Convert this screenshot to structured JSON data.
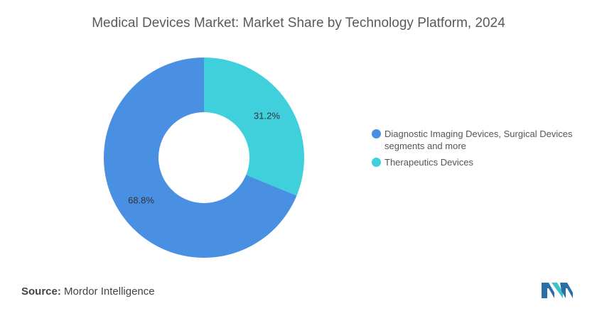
{
  "chart_data": {
    "type": "pie",
    "title": "Medical Devices Market: Market Share by Technology Platform, 2024",
    "slices": [
      {
        "label": "Therapeutics Devices",
        "value": 31.2,
        "display": "31.2%",
        "color": "#40d0dc"
      },
      {
        "label": "Diagnostic Imaging Devices, Surgical Devices segments and more",
        "value": 68.8,
        "display": "68.8%",
        "color": "#4a90e2"
      }
    ],
    "legend": [
      {
        "label": "Diagnostic Imaging Devices, Surgical Devices segments and more",
        "color": "#4a90e2"
      },
      {
        "label": "Therapeutics Devices",
        "color": "#40d0dc"
      }
    ],
    "legend_position": "right",
    "donut": true
  },
  "source": {
    "prefix": "Source:",
    "text": "Mordor Intelligence"
  }
}
